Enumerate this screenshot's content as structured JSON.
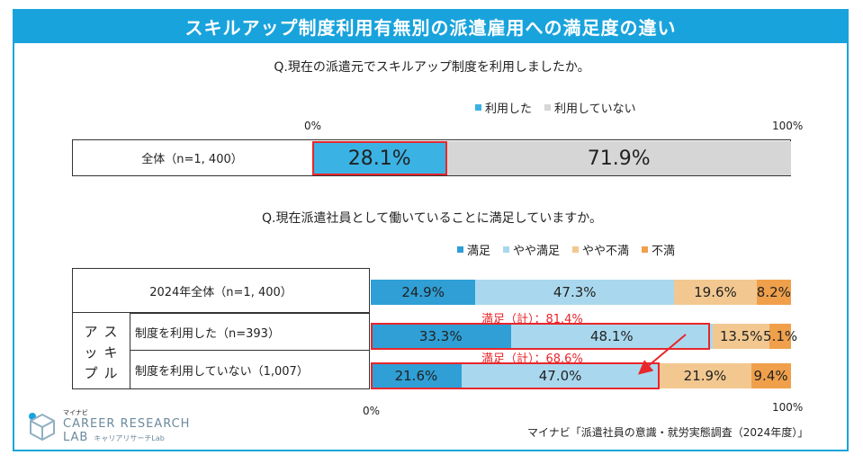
{
  "title": "スキルアップ制度利用有無別の派遣雇用への満足度の違い",
  "q1": {
    "question": "Q.現在の派遣元でスキルアップ制度を利用しましたか。",
    "legend": [
      {
        "label": "利用した",
        "color": "#3bb2e4"
      },
      {
        "label": "利用していない",
        "color": "#d6d6d6"
      }
    ],
    "axis_left": "0%",
    "axis_right": "100%",
    "row_label": "全体（n=1, 400）",
    "values_text": [
      "28.1%",
      "71.9%"
    ]
  },
  "q2": {
    "question": "Q.現在派遣社員として働いていることに満足していますか。",
    "legend": [
      {
        "label": "満足",
        "color": "#2f9fd6"
      },
      {
        "label": "やや満足",
        "color": "#a9d8ee"
      },
      {
        "label": "やや不満",
        "color": "#f2c890"
      },
      {
        "label": "不満",
        "color": "#f0a04b"
      }
    ],
    "axis_left": "0%",
    "axis_right": "100%",
    "group_label": "スキルアップ",
    "group_label_chars": [
      "ア",
      "ス",
      "ッ",
      "キ",
      "プ",
      "ル"
    ],
    "rows": [
      {
        "label": "2024年全体（n=1, 400）",
        "texts": [
          "24.9%",
          "47.3%",
          "19.6%",
          "8.2%"
        ]
      },
      {
        "label": "制度を利用した（n=393）",
        "texts": [
          "33.3%",
          "48.1%",
          "13.5%",
          "5.1%"
        ]
      },
      {
        "label": "制度を利用していない（1,007）",
        "texts": [
          "21.6%",
          "47.0%",
          "21.9%",
          "9.4%"
        ]
      }
    ],
    "note_used": "満足（計）：81.4%",
    "note_not_used": "満足（計）：68.6%"
  },
  "logo": {
    "line1": "マイナビ",
    "line2": "CAREER RESEARCH",
    "line3": "LAB",
    "line4": "キャリアリサーチLab"
  },
  "source": "マイナビ「派遣社員の意識・就労実態調査（2024年度）」",
  "chart_data": [
    {
      "type": "bar",
      "orientation": "horizontal-stacked-100",
      "title": "Q.現在の派遣元でスキルアップ制度を利用しましたか。",
      "categories": [
        "全体（n=1, 400）"
      ],
      "series": [
        {
          "name": "利用した",
          "values": [
            28.1
          ]
        },
        {
          "name": "利用していない",
          "values": [
            71.9
          ]
        }
      ],
      "xlim": [
        0,
        100
      ]
    },
    {
      "type": "bar",
      "orientation": "horizontal-stacked-100",
      "title": "Q.現在派遣社員として働いていることに満足していますか。",
      "categories": [
        "2024年全体（n=1, 400）",
        "制度を利用した（n=393）",
        "制度を利用していない（1,007）"
      ],
      "series": [
        {
          "name": "満足",
          "values": [
            24.9,
            33.3,
            21.6
          ]
        },
        {
          "name": "やや満足",
          "values": [
            47.3,
            48.1,
            47.0
          ]
        },
        {
          "name": "やや不満",
          "values": [
            19.6,
            13.5,
            21.9
          ]
        },
        {
          "name": "不満",
          "values": [
            8.2,
            5.1,
            9.4
          ]
        }
      ],
      "xlim": [
        0,
        100
      ]
    }
  ]
}
